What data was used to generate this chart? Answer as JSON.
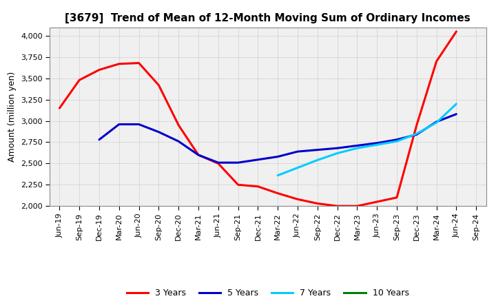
{
  "title": "[3679]  Trend of Mean of 12-Month Moving Sum of Ordinary Incomes",
  "ylabel": "Amount (million yen)",
  "ylim": [
    2000,
    4100
  ],
  "yticks": [
    2000,
    2250,
    2500,
    2750,
    3000,
    3250,
    3500,
    3750,
    4000
  ],
  "background_color": "#ffffff",
  "plot_bg_color": "#f0f0f0",
  "grid_color": "#aaaaaa",
  "x_labels": [
    "Jun-19",
    "Sep-19",
    "Dec-19",
    "Mar-20",
    "Jun-20",
    "Sep-20",
    "Dec-20",
    "Mar-21",
    "Jun-21",
    "Sep-21",
    "Dec-21",
    "Mar-22",
    "Jun-22",
    "Sep-22",
    "Dec-22",
    "Mar-23",
    "Jun-23",
    "Sep-23",
    "Dec-23",
    "Mar-24",
    "Jun-24",
    "Sep-24"
  ],
  "series_3yr": {
    "label": "3 Years",
    "color": "#ff0000",
    "x_indices": [
      0,
      1,
      2,
      3,
      4,
      5,
      6,
      7,
      8,
      9,
      10,
      11,
      12,
      13,
      14,
      15,
      16,
      17,
      18,
      19,
      20
    ],
    "y": [
      3150,
      3480,
      3600,
      3670,
      3680,
      3420,
      2950,
      2600,
      2500,
      2250,
      2230,
      2150,
      2080,
      2030,
      2000,
      2000,
      2050,
      2100,
      2950,
      3700,
      4050
    ]
  },
  "series_5yr": {
    "label": "5 Years",
    "color": "#0000cc",
    "x_indices": [
      2,
      3,
      4,
      5,
      6,
      7,
      8,
      9,
      10,
      11,
      12,
      13,
      14,
      15,
      16,
      17,
      18,
      19,
      20
    ],
    "y": [
      2780,
      2960,
      2960,
      2870,
      2760,
      2600,
      2510,
      2510,
      2545,
      2580,
      2640,
      2660,
      2680,
      2710,
      2740,
      2780,
      2840,
      2990,
      3080
    ]
  },
  "series_7yr": {
    "label": "7 Years",
    "color": "#00ccff",
    "x_indices": [
      11,
      12,
      13,
      14,
      15,
      16,
      17,
      18,
      19,
      20
    ],
    "y": [
      2360,
      2450,
      2540,
      2620,
      2680,
      2720,
      2760,
      2850,
      2980,
      3200
    ]
  },
  "series_10yr": {
    "label": "10 Years",
    "color": "#008000",
    "x_indices": [],
    "y": []
  },
  "legend_entries": [
    {
      "label": "3 Years",
      "color": "#ff0000"
    },
    {
      "label": "5 Years",
      "color": "#0000cc"
    },
    {
      "label": "7 Years",
      "color": "#00ccff"
    },
    {
      "label": "10 Years",
      "color": "#008000"
    }
  ],
  "title_fontsize": 11,
  "axis_label_fontsize": 9,
  "tick_fontsize": 8,
  "legend_fontsize": 9,
  "linewidth": 2.2
}
